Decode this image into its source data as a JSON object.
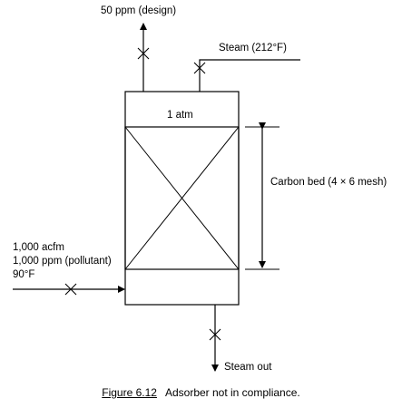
{
  "labels": {
    "top_outlet": "50 ppm (design)",
    "steam_in": "Steam (212°F)",
    "pressure": "1 atm",
    "carbon_bed": "Carbon bed (4 × 6 mesh)",
    "inlet_flow": "1,000 acfm",
    "inlet_conc": "1,000 ppm (pollutant)",
    "inlet_temp": "90°F",
    "steam_out": "Steam out"
  },
  "caption": {
    "number": "Figure 6.12",
    "text": "Adsorber not in compliance."
  }
}
